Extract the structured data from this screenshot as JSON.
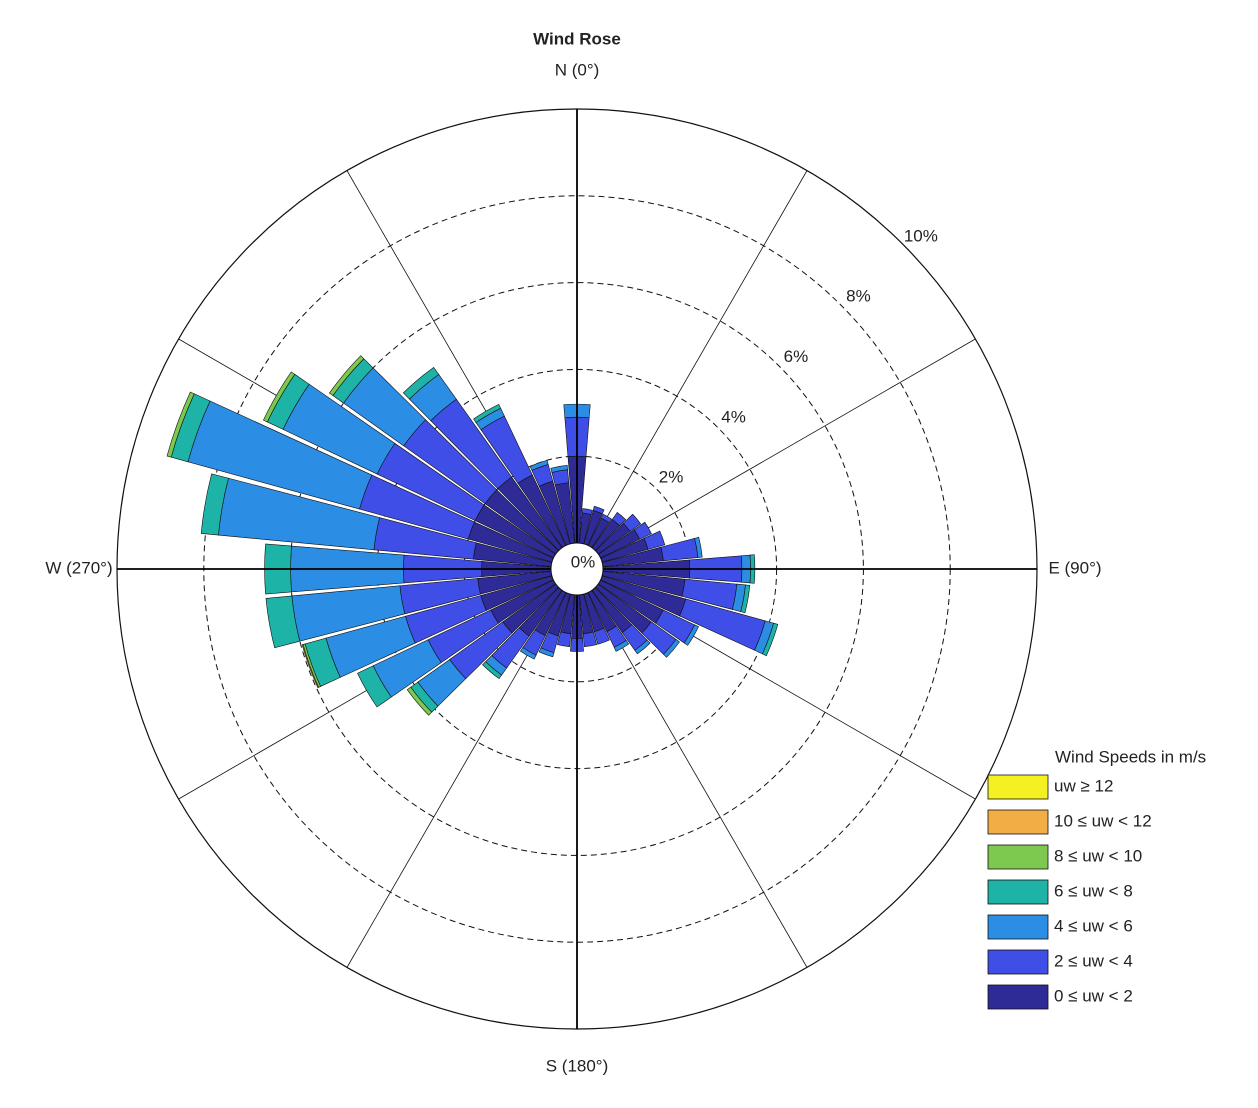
{
  "chart_data": {
    "type": "windrose",
    "title": "Wind Rose",
    "directions": [
      0,
      10,
      20,
      30,
      40,
      50,
      60,
      70,
      80,
      90,
      100,
      110,
      120,
      130,
      140,
      150,
      160,
      170,
      180,
      190,
      200,
      210,
      220,
      230,
      240,
      250,
      260,
      270,
      280,
      290,
      300,
      310,
      320,
      330,
      340,
      350
    ],
    "direction_ticks": [
      0,
      30,
      60,
      90,
      120,
      150,
      180,
      210,
      240,
      270,
      300,
      330
    ],
    "direction_labels": [
      {
        "value": 0,
        "label": "N (0°)"
      },
      {
        "value": 90,
        "label": "E (90°)"
      },
      {
        "value": 180,
        "label": "S (180°)"
      },
      {
        "value": 270,
        "label": "W (270°)"
      }
    ],
    "rlim": [
      0,
      10
    ],
    "rticks": [
      {
        "value": 0,
        "label": "0%"
      },
      {
        "value": 2,
        "label": "2%"
      },
      {
        "value": 4,
        "label": "4%"
      },
      {
        "value": 6,
        "label": "6%"
      },
      {
        "value": 8,
        "label": "8%"
      },
      {
        "value": 10,
        "label": "10%"
      }
    ],
    "legend_title": "Wind Speeds in m/s",
    "series": [
      {
        "name": "0 ≤ uw < 2",
        "color": "#2e2a96",
        "values": [
          2.0,
          0.7,
          0.8,
          0.7,
          0.8,
          0.9,
          1.0,
          1.1,
          1.4,
          2.0,
          1.9,
          2.0,
          1.6,
          1.5,
          1.2,
          1.0,
          0.9,
          0.9,
          1.0,
          0.9,
          1.0,
          1.1,
          1.3,
          1.5,
          1.6,
          1.7,
          1.7,
          1.6,
          1.8,
          2.0,
          2.0,
          2.0,
          2.0,
          1.8,
          1.5,
          1.4
        ]
      },
      {
        "name": "2 ≤ uw < 4",
        "color": "#3f4ee6",
        "values": [
          0.9,
          0.1,
          0.1,
          0.1,
          0.2,
          0.3,
          0.3,
          0.4,
          0.8,
          1.2,
          1.2,
          1.9,
          0.8,
          0.7,
          0.5,
          0.4,
          0.3,
          0.3,
          0.3,
          0.3,
          0.4,
          0.5,
          0.9,
          1.5,
          1.6,
          1.8,
          1.8,
          1.8,
          2.3,
          2.6,
          2.5,
          2.3,
          2.2,
          1.5,
          0.4,
          0.3
        ]
      },
      {
        "name": "4 ≤ uw < 6",
        "color": "#2b8de4",
        "values": [
          0.3,
          0,
          0,
          0,
          0,
          0,
          0,
          0,
          0.1,
          0.2,
          0.2,
          0.2,
          0.1,
          0.1,
          0.1,
          0.1,
          0,
          0,
          0,
          0,
          0.1,
          0.1,
          0.2,
          0.9,
          1.4,
          1.9,
          2.5,
          2.6,
          3.6,
          4.1,
          2.4,
          1.7,
          0.7,
          0.2,
          0.1,
          0.1
        ]
      },
      {
        "name": "6 ≤ uw < 8",
        "color": "#1db3a6",
        "values": [
          0,
          0,
          0,
          0,
          0,
          0,
          0,
          0,
          0,
          0.1,
          0.1,
          0.1,
          0,
          0,
          0,
          0,
          0,
          0,
          0,
          0,
          0,
          0,
          0.1,
          0.2,
          0.4,
          0.5,
          0.6,
          0.6,
          0.4,
          0.4,
          0.4,
          0.3,
          0.2,
          0.1,
          0,
          0
        ]
      },
      {
        "name": "8 ≤ uw < 10",
        "color": "#7dc84e",
        "values": [
          0,
          0,
          0,
          0,
          0,
          0,
          0,
          0,
          0,
          0,
          0,
          0,
          0,
          0,
          0,
          0,
          0,
          0,
          0,
          0,
          0,
          0,
          0,
          0.1,
          0,
          0.05,
          0,
          0,
          0,
          0.1,
          0.1,
          0.1,
          0,
          0,
          0,
          0
        ]
      },
      {
        "name": "10 ≤ uw < 12",
        "color": "#f3ad45",
        "values": [
          0,
          0,
          0,
          0,
          0,
          0,
          0,
          0,
          0,
          0,
          0,
          0,
          0,
          0,
          0,
          0,
          0,
          0,
          0,
          0,
          0,
          0,
          0,
          0,
          0,
          0.02,
          0,
          0,
          0,
          0,
          0,
          0,
          0,
          0,
          0,
          0
        ]
      },
      {
        "name": "uw ≥ 12",
        "color": "#f5f022",
        "values": [
          0,
          0,
          0,
          0,
          0,
          0,
          0,
          0,
          0,
          0,
          0,
          0,
          0,
          0,
          0,
          0,
          0,
          0,
          0,
          0,
          0,
          0,
          0,
          0,
          0,
          0,
          0,
          0,
          0,
          0,
          0,
          0,
          0,
          0,
          0,
          0
        ]
      }
    ]
  }
}
